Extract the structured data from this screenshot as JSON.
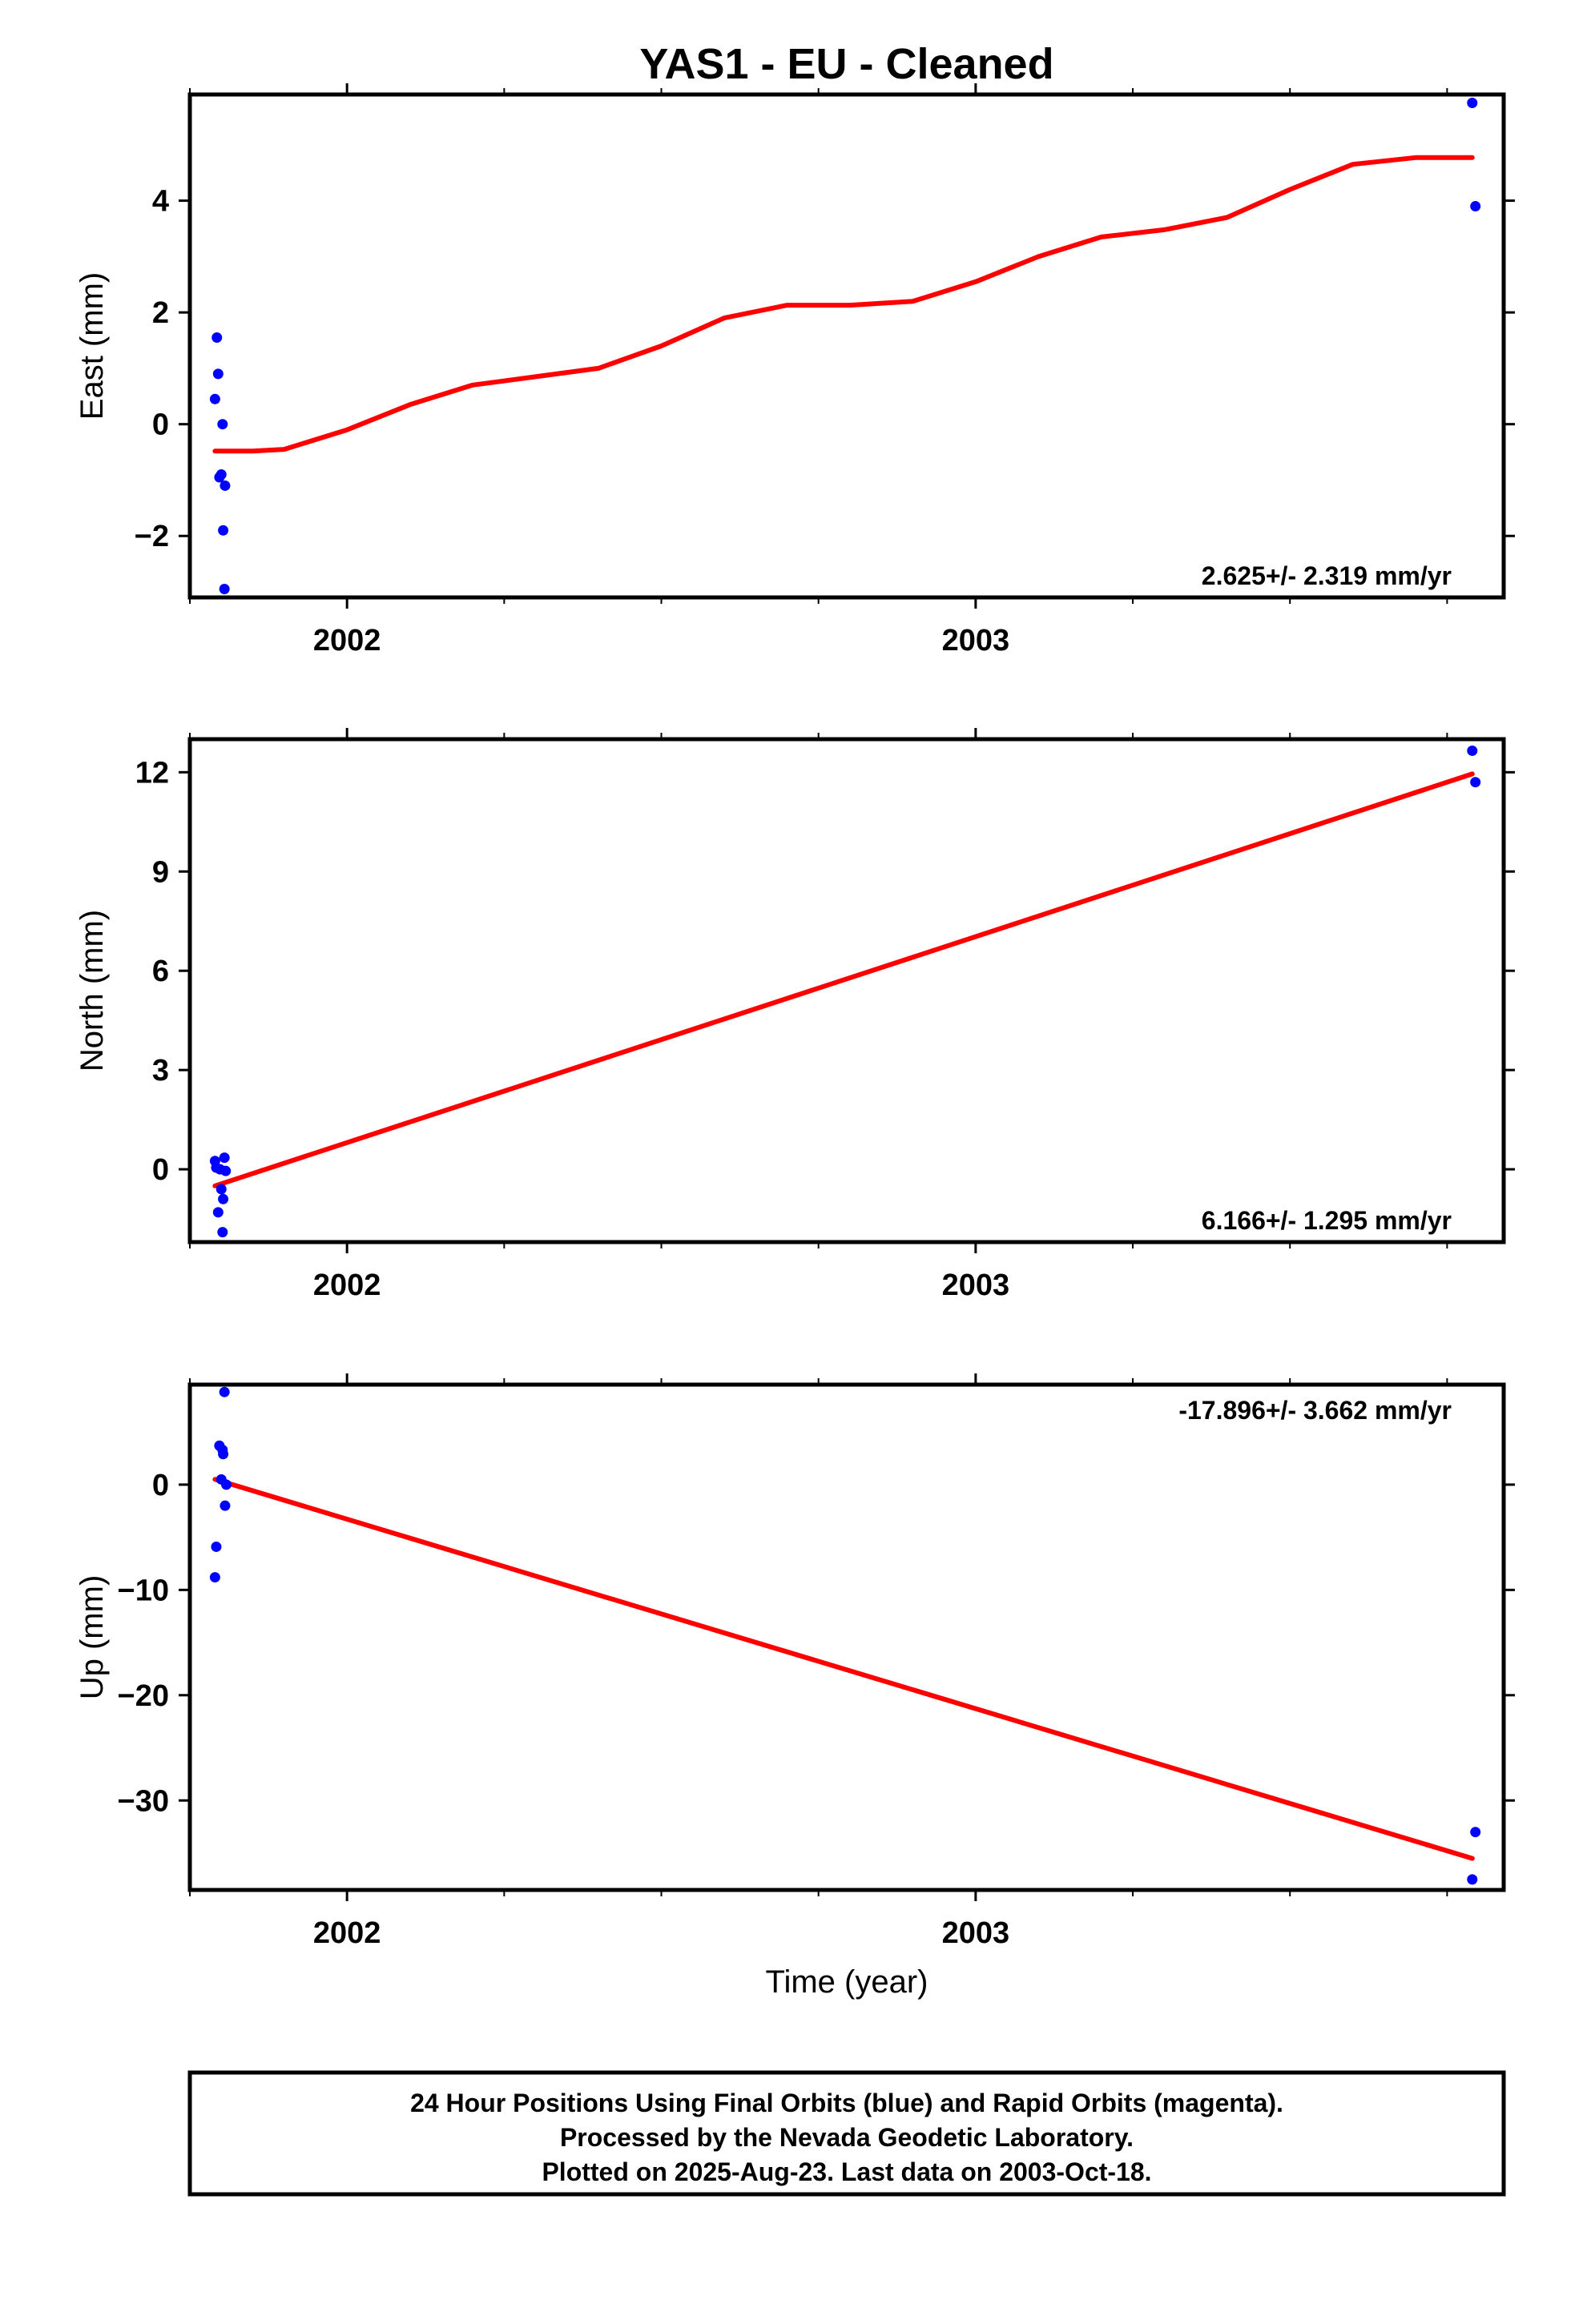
{
  "title": "YAS1  - EU - Cleaned",
  "colors": {
    "data": "#0000ff",
    "fit": "#ff0000",
    "frame": "#000000"
  },
  "chart_data": [
    {
      "type": "scatter",
      "panel": "east",
      "ylabel": "East (mm)",
      "xlim": [
        2001.75,
        2003.84
      ],
      "ylim": [
        -3.1,
        5.9
      ],
      "yticks": [
        -2,
        0,
        2,
        4
      ],
      "ytick_labels": [
        "−2",
        "0",
        "2",
        "4"
      ],
      "xticks": [
        2002,
        2003
      ],
      "xtick_labels": [
        "2002",
        "2003"
      ],
      "xminor": [
        2001.75,
        2002.25,
        2002.5,
        2002.75,
        2003.25,
        2003.5,
        2003.75
      ],
      "rate_text": "2.625+/- 2.319 mm/yr",
      "rate_position": "bottom-right",
      "points": {
        "x": [
          2001.79,
          2001.793,
          2001.795,
          2001.797,
          2001.8,
          2001.802,
          2001.803,
          2001.805,
          2001.806,
          2003.79,
          2003.795
        ],
        "y": [
          0.45,
          1.55,
          0.9,
          -0.95,
          -0.9,
          0.0,
          -1.9,
          -2.95,
          -1.1,
          5.75,
          3.9
        ]
      },
      "fit": {
        "x": [
          2001.79,
          2001.85,
          2001.9,
          2002.0,
          2002.1,
          2002.2,
          2002.3,
          2002.4,
          2002.5,
          2002.6,
          2002.7,
          2002.8,
          2002.9,
          2003.0,
          2003.1,
          2003.2,
          2003.3,
          2003.4,
          2003.5,
          2003.6,
          2003.7,
          2003.79
        ],
        "y": [
          -0.48,
          -0.48,
          -0.45,
          -0.1,
          0.35,
          0.7,
          0.85,
          1.0,
          1.4,
          1.9,
          2.13,
          2.13,
          2.2,
          2.55,
          3.0,
          3.35,
          3.48,
          3.7,
          4.2,
          4.65,
          4.77,
          4.77
        ]
      }
    },
    {
      "type": "scatter",
      "panel": "north",
      "ylabel": "North (mm)",
      "xlim": [
        2001.75,
        2003.84
      ],
      "ylim": [
        -2.2,
        13.0
      ],
      "yticks": [
        0,
        3,
        6,
        9,
        12
      ],
      "ytick_labels": [
        "0",
        "3",
        "6",
        "9",
        "12"
      ],
      "xticks": [
        2002,
        2003
      ],
      "xtick_labels": [
        "2002",
        "2003"
      ],
      "xminor": [
        2001.75,
        2002.25,
        2002.5,
        2002.75,
        2003.25,
        2003.5,
        2003.75
      ],
      "rate_text": "6.166+/- 1.295 mm/yr",
      "rate_position": "bottom-right",
      "points": {
        "x": [
          2001.79,
          2001.792,
          2001.795,
          2001.798,
          2001.8,
          2001.802,
          2001.803,
          2001.805,
          2001.807,
          2003.79,
          2003.795
        ],
        "y": [
          0.25,
          0.05,
          -1.3,
          0.0,
          -0.6,
          -1.9,
          -0.9,
          0.35,
          -0.05,
          12.65,
          11.7
        ]
      },
      "fit": {
        "x": [
          2001.79,
          2003.79
        ],
        "y": [
          -0.5,
          11.95
        ]
      }
    },
    {
      "type": "scatter",
      "panel": "up",
      "ylabel": "Up (mm)",
      "xlabel": "Time (year)",
      "xlim": [
        2001.75,
        2003.84
      ],
      "ylim": [
        -38.5,
        9.5
      ],
      "yticks": [
        -30,
        -20,
        -10,
        0
      ],
      "ytick_labels": [
        "−30",
        "−20",
        "−10",
        "0"
      ],
      "xticks": [
        2002,
        2003
      ],
      "xtick_labels": [
        "2002",
        "2003"
      ],
      "xminor": [
        2001.75,
        2002.25,
        2002.5,
        2002.75,
        2003.25,
        2003.5,
        2003.75
      ],
      "rate_text": "-17.896+/- 3.662 mm/yr",
      "rate_position": "top-right",
      "points": {
        "x": [
          2001.79,
          2001.792,
          2001.797,
          2001.8,
          2001.802,
          2001.803,
          2001.805,
          2001.806,
          2001.808,
          2003.79,
          2003.795
        ],
        "y": [
          -8.8,
          -5.9,
          3.7,
          0.5,
          3.3,
          2.9,
          8.8,
          -2.0,
          0.0,
          -37.5,
          -33.0
        ]
      },
      "fit": {
        "x": [
          2001.79,
          2003.79
        ],
        "y": [
          0.5,
          -35.5
        ]
      }
    }
  ],
  "footer": {
    "line1": "24 Hour Positions Using Final Orbits (blue) and Rapid Orbits (magenta).",
    "line2": "Processed by the Nevada Geodetic Laboratory.",
    "line3": "Plotted on 2025-Aug-23. Last data on 2003-Oct-18."
  }
}
